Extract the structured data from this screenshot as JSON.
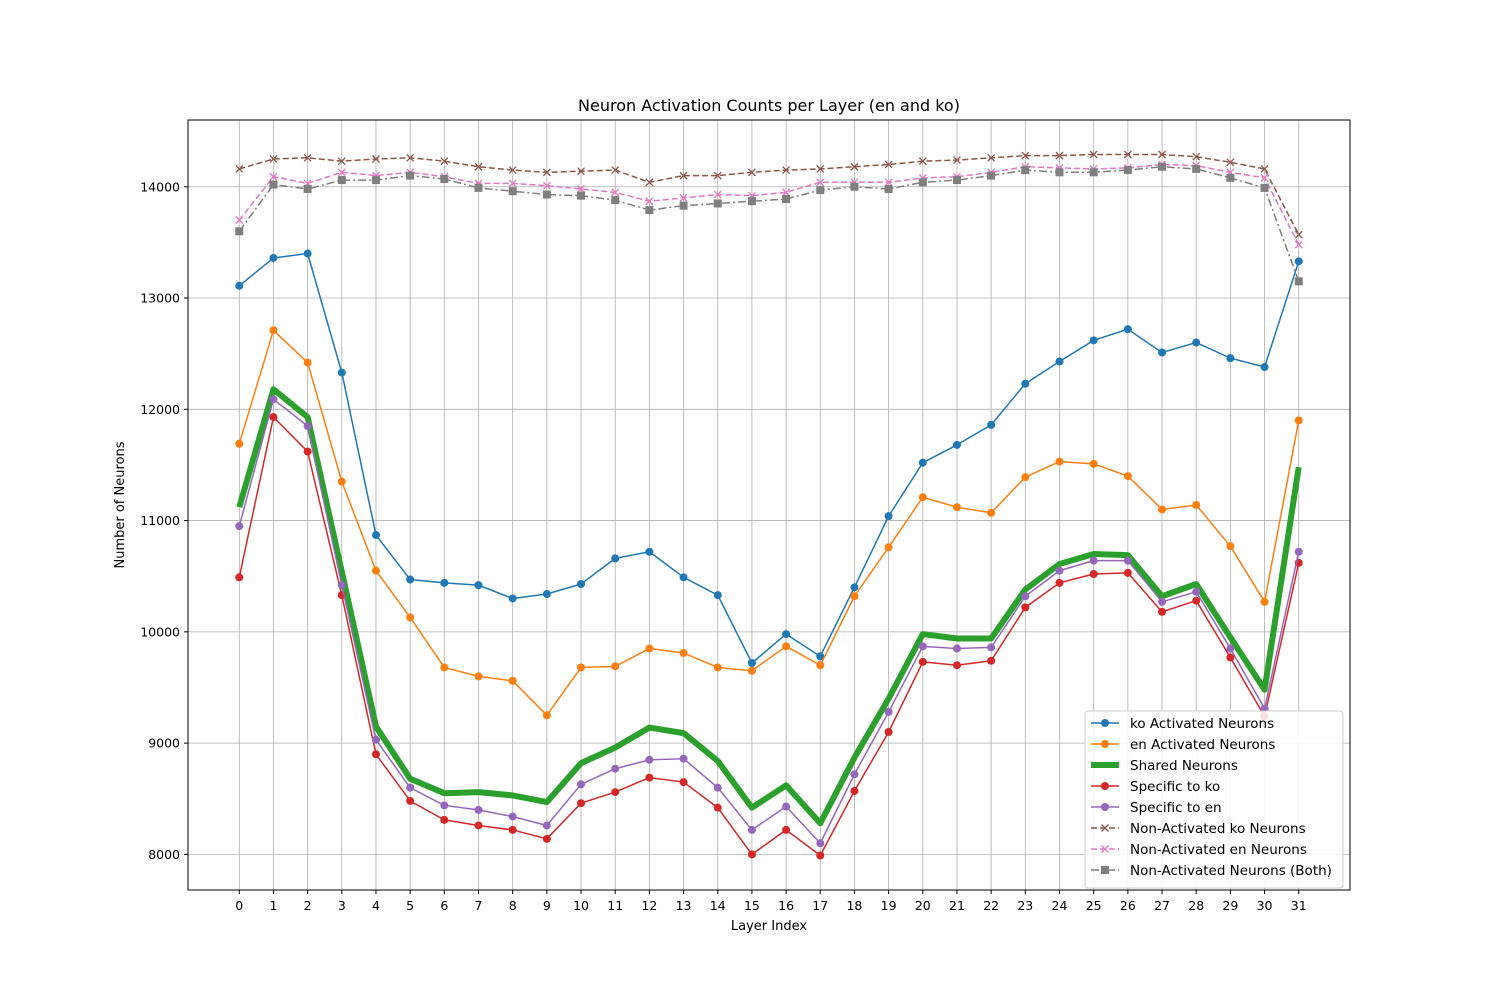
{
  "chart_data": {
    "type": "line",
    "title": "Neuron Activation Counts per Layer (en and ko)",
    "xlabel": "Layer Index",
    "ylabel": "Number of Neurons",
    "x": [
      0,
      1,
      2,
      3,
      4,
      5,
      6,
      7,
      8,
      9,
      10,
      11,
      12,
      13,
      14,
      15,
      16,
      17,
      18,
      19,
      20,
      21,
      22,
      23,
      24,
      25,
      26,
      27,
      28,
      29,
      30,
      31
    ],
    "xlim": [
      -1.5,
      32.5
    ],
    "ylim": [
      7680,
      14600
    ],
    "yticks": [
      8000,
      9000,
      10000,
      11000,
      12000,
      13000,
      14000
    ],
    "grid": true,
    "legend_position": "lower-right",
    "series": [
      {
        "name": "ko Activated Neurons",
        "color": "#1f77b4",
        "marker": "circle",
        "linestyle": "solid",
        "linewidth": 1.5,
        "values": [
          13110,
          13360,
          13400,
          12330,
          10870,
          10470,
          10440,
          10420,
          10300,
          10340,
          10430,
          10660,
          10720,
          10490,
          10330,
          9720,
          9980,
          9780,
          10400,
          11040,
          11520,
          11680,
          11860,
          12230,
          12430,
          12620,
          12720,
          12510,
          12600,
          12460,
          12380,
          13330
        ]
      },
      {
        "name": "en Activated Neurons",
        "color": "#ff7f0e",
        "marker": "circle",
        "linestyle": "solid",
        "linewidth": 1.5,
        "values": [
          11690,
          12710,
          12420,
          11350,
          10550,
          10130,
          9680,
          9600,
          9560,
          9250,
          9680,
          9690,
          9850,
          9810,
          9680,
          9650,
          9870,
          9700,
          10320,
          10760,
          11210,
          11120,
          11070,
          11390,
          11530,
          11510,
          11400,
          11100,
          11140,
          10770,
          10270,
          11900
        ]
      },
      {
        "name": "Shared Neurons",
        "color": "#2ca02c",
        "marker": "none",
        "linestyle": "solid",
        "linewidth": 6,
        "values": [
          11120,
          12180,
          11930,
          10540,
          9150,
          8680,
          8550,
          8560,
          8530,
          8470,
          8820,
          8960,
          9140,
          9090,
          8840,
          8420,
          8620,
          8280,
          8870,
          9400,
          9980,
          9940,
          9940,
          10380,
          10610,
          10700,
          10690,
          10320,
          10430,
          9950,
          9480,
          11480
        ]
      },
      {
        "name": "Specific to ko",
        "color": "#d62728",
        "marker": "circle",
        "linestyle": "solid",
        "linewidth": 1.5,
        "values": [
          10490,
          11930,
          11620,
          10330,
          8900,
          8480,
          8310,
          8260,
          8220,
          8140,
          8460,
          8560,
          8690,
          8650,
          8420,
          8000,
          8220,
          7990,
          8570,
          9100,
          9730,
          9700,
          9740,
          10220,
          10440,
          10520,
          10530,
          10180,
          10280,
          9770,
          9240,
          10620
        ]
      },
      {
        "name": "Specific to en",
        "color": "#9467bd",
        "marker": "circle",
        "linestyle": "solid",
        "linewidth": 1.5,
        "values": [
          10950,
          12090,
          11850,
          10420,
          9030,
          8600,
          8440,
          8400,
          8340,
          8260,
          8630,
          8770,
          8850,
          8860,
          8600,
          8220,
          8430,
          8100,
          8720,
          9280,
          9870,
          9850,
          9860,
          10320,
          10550,
          10640,
          10640,
          10270,
          10360,
          9850,
          9310,
          10720
        ]
      },
      {
        "name": "Non-Activated ko Neurons",
        "color": "#8c564b",
        "marker": "x",
        "linestyle": "dashed",
        "linewidth": 1.5,
        "values": [
          14160,
          14250,
          14260,
          14230,
          14250,
          14260,
          14230,
          14180,
          14150,
          14130,
          14140,
          14150,
          14040,
          14100,
          14100,
          14130,
          14150,
          14160,
          14180,
          14200,
          14230,
          14240,
          14260,
          14280,
          14280,
          14290,
          14290,
          14290,
          14270,
          14220,
          14160,
          13570
        ]
      },
      {
        "name": "Non-Activated en Neurons",
        "color": "#e377c2",
        "marker": "x",
        "linestyle": "dashed",
        "linewidth": 1.5,
        "values": [
          13700,
          14090,
          14030,
          14130,
          14100,
          14130,
          14090,
          14030,
          14030,
          14010,
          13980,
          13950,
          13870,
          13900,
          13930,
          13920,
          13950,
          14040,
          14040,
          14040,
          14080,
          14090,
          14130,
          14180,
          14170,
          14160,
          14170,
          14200,
          14190,
          14130,
          14080,
          13480
        ]
      },
      {
        "name": "Non-Activated Neurons (Both)",
        "color": "#7f7f7f",
        "marker": "square",
        "linestyle": "dashdot",
        "linewidth": 1.5,
        "values": [
          13600,
          14020,
          13980,
          14060,
          14060,
          14100,
          14070,
          13990,
          13960,
          13930,
          13920,
          13880,
          13790,
          13830,
          13850,
          13870,
          13890,
          13970,
          14000,
          13980,
          14040,
          14060,
          14100,
          14150,
          14130,
          14130,
          14150,
          14180,
          14160,
          14080,
          13990,
          13150
        ]
      }
    ]
  }
}
